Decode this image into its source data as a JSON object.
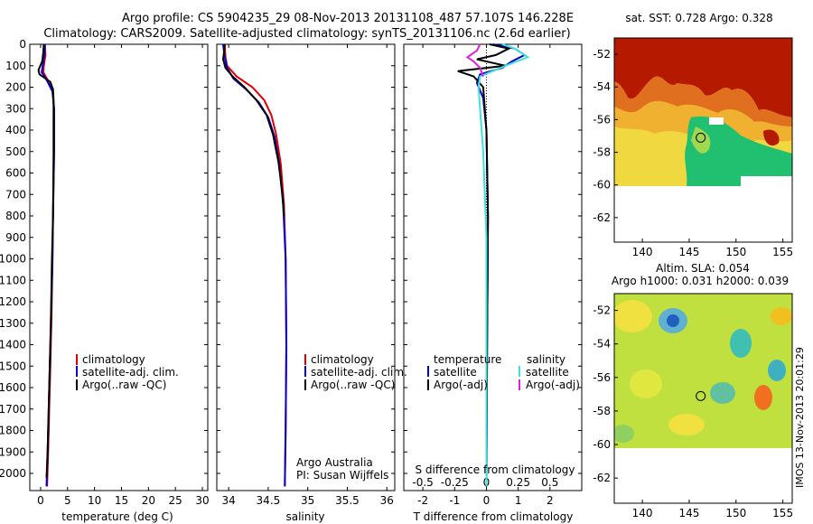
{
  "title": {
    "line1": "Argo profile: CS 5904235_29 08-Nov-2013 20131108_487 57.107S 146.228E",
    "line2": "Climatology: CARS2009. Satellite-adjusted climatology: synTS_20131106.nc (2.6d earlier)"
  },
  "side_stamp": "IMOS 13-Nov-2013 20:01:29",
  "colors": {
    "clim": "#e00000",
    "sat": "#0000d0",
    "argo": "#000000",
    "sat_s": "#40e0e0",
    "argo_s": "#e020e0"
  },
  "chart_data": [
    {
      "type": "line",
      "id": "temperature",
      "xlabel": "temperature (deg C)",
      "xlim": [
        -2,
        31
      ],
      "ylim": [
        2080,
        0
      ],
      "xticks": [
        0,
        5,
        10,
        15,
        20,
        25,
        30
      ],
      "yticks": [
        0,
        100,
        200,
        300,
        400,
        500,
        600,
        700,
        800,
        900,
        1000,
        1100,
        1200,
        1300,
        1400,
        1500,
        1600,
        1700,
        1800,
        1900,
        2000
      ],
      "legend": [
        "climatology",
        "satellite-adj. clim.",
        "Argo(..raw -QC)"
      ],
      "series": [
        {
          "name": "climatology",
          "color": "#e00000",
          "points": [
            [
              0.8,
              0
            ],
            [
              0.9,
              50
            ],
            [
              0.6,
              100
            ],
            [
              0.5,
              130
            ],
            [
              1.4,
              170
            ],
            [
              2.2,
              220
            ],
            [
              2.5,
              300
            ],
            [
              2.5,
              500
            ],
            [
              2.3,
              800
            ],
            [
              2.2,
              1000
            ],
            [
              2.0,
              1300
            ],
            [
              1.7,
              1600
            ],
            [
              1.4,
              1900
            ],
            [
              1.2,
              2060
            ]
          ]
        },
        {
          "name": "satellite-adj. clim.",
          "color": "#0000d0",
          "points": [
            [
              0.8,
              0
            ],
            [
              0.7,
              50
            ],
            [
              0.4,
              100
            ],
            [
              0.2,
              130
            ],
            [
              1.2,
              170
            ],
            [
              2.2,
              220
            ],
            [
              2.5,
              300
            ],
            [
              2.5,
              500
            ],
            [
              2.3,
              800
            ],
            [
              2.2,
              1000
            ],
            [
              1.9,
              1300
            ],
            [
              1.6,
              1600
            ],
            [
              1.3,
              1900
            ],
            [
              1.1,
              2060
            ]
          ]
        },
        {
          "name": "Argo(..raw -QC)",
          "color": "#000000",
          "points": [
            [
              0.6,
              0
            ],
            [
              0.5,
              40
            ],
            [
              0.3,
              80
            ],
            [
              -0.4,
              120
            ],
            [
              -0.2,
              140
            ],
            [
              1.8,
              175
            ],
            [
              2.3,
              210
            ],
            [
              2.4,
              260
            ],
            [
              2.4,
              500
            ],
            [
              2.3,
              800
            ],
            [
              2.1,
              1000
            ],
            [
              1.9,
              1300
            ],
            [
              1.6,
              1600
            ],
            [
              1.3,
              1900
            ],
            [
              1.1,
              2020
            ]
          ]
        }
      ]
    },
    {
      "type": "line",
      "id": "salinity",
      "xlabel": "salinity",
      "xlim": [
        33.85,
        36.1
      ],
      "ylim": [
        2080,
        0
      ],
      "xticks": [
        34,
        34.5,
        35,
        35.5,
        36
      ],
      "xticklabels": [
        "34",
        "34.5",
        "35",
        "35.5",
        "36"
      ],
      "legend": [
        "climatology",
        "satellite-adj. clim.",
        "Argo(..raw -QC)"
      ],
      "annotation": [
        "Argo Australia",
        "PI: Susan Wijffels"
      ],
      "series": [
        {
          "name": "climatology",
          "color": "#e00000",
          "points": [
            [
              33.95,
              0
            ],
            [
              33.96,
              60
            ],
            [
              33.98,
              100
            ],
            [
              34.1,
              150
            ],
            [
              34.3,
              200
            ],
            [
              34.45,
              260
            ],
            [
              34.54,
              330
            ],
            [
              34.6,
              420
            ],
            [
              34.66,
              560
            ],
            [
              34.7,
              750
            ],
            [
              34.72,
              1000
            ],
            [
              34.73,
              1400
            ],
            [
              34.72,
              1800
            ],
            [
              34.71,
              2060
            ]
          ]
        },
        {
          "name": "satellite-adj. clim.",
          "color": "#0000d0",
          "points": [
            [
              33.93,
              0
            ],
            [
              33.95,
              60
            ],
            [
              33.98,
              110
            ],
            [
              34.06,
              160
            ],
            [
              34.22,
              210
            ],
            [
              34.38,
              270
            ],
            [
              34.5,
              340
            ],
            [
              34.58,
              430
            ],
            [
              34.64,
              560
            ],
            [
              34.69,
              750
            ],
            [
              34.72,
              1000
            ],
            [
              34.73,
              1400
            ],
            [
              34.72,
              1800
            ],
            [
              34.71,
              2060
            ]
          ]
        },
        {
          "name": "Argo(..raw -QC)",
          "color": "#000000",
          "points": [
            [
              33.95,
              0
            ],
            [
              33.94,
              40
            ],
            [
              33.93,
              70
            ],
            [
              33.96,
              110
            ],
            [
              34.05,
              150
            ],
            [
              34.2,
              200
            ],
            [
              34.35,
              260
            ],
            [
              34.48,
              330
            ],
            [
              34.56,
              420
            ],
            [
              34.63,
              550
            ],
            [
              34.68,
              700
            ],
            [
              34.7,
              800
            ]
          ]
        }
      ]
    },
    {
      "type": "line",
      "id": "difference",
      "xlabel": "T difference from climatology",
      "xlabel2": "S difference from climatology",
      "xlim": [
        -2.6,
        3.0
      ],
      "ylim": [
        2080,
        0
      ],
      "xticks": [
        -2,
        -1,
        0,
        1,
        2
      ],
      "xticks2": [
        -0.5,
        -0.25,
        0,
        0.25,
        0.5
      ],
      "xticks2_pos": [
        -2,
        -1,
        0,
        1,
        2
      ],
      "legend": {
        "temperature": [
          "satellite",
          "Argo(-adj)"
        ],
        "salinity": [
          "satellite",
          "Argo(-adj)"
        ]
      },
      "series": [
        {
          "name": "temperature satellite",
          "color": "#0000d0",
          "points": [
            [
              0.2,
              0
            ],
            [
              0.9,
              20
            ],
            [
              1.2,
              50
            ],
            [
              0.8,
              80
            ],
            [
              0.5,
              110
            ],
            [
              -0.2,
              140
            ],
            [
              -0.3,
              180
            ],
            [
              -0.1,
              250
            ],
            [
              0.0,
              400
            ],
            [
              0.05,
              800
            ],
            [
              0.02,
              1400
            ],
            [
              0.0,
              2060
            ]
          ]
        },
        {
          "name": "temperature Argo(-adj)",
          "color": "#000000",
          "points": [
            [
              0.1,
              0
            ],
            [
              0.7,
              20
            ],
            [
              0.3,
              50
            ],
            [
              -0.3,
              70
            ],
            [
              0.6,
              100
            ],
            [
              -0.9,
              125
            ],
            [
              -0.4,
              150
            ],
            [
              -0.1,
              200
            ],
            [
              0.0,
              400
            ],
            [
              0.05,
              800
            ],
            [
              0.02,
              1400
            ],
            [
              0.0,
              2060
            ]
          ]
        },
        {
          "name": "salinity satellite",
          "color": "#40e0e0",
          "points": [
            [
              0.5,
              0
            ],
            [
              0.9,
              20
            ],
            [
              1.3,
              60
            ],
            [
              0.6,
              100
            ],
            [
              -0.2,
              150
            ],
            [
              -0.25,
              200
            ],
            [
              -0.2,
              300
            ],
            [
              -0.1,
              500
            ],
            [
              0.0,
              900
            ],
            [
              0.0,
              1400
            ],
            [
              0.0,
              2060
            ]
          ]
        },
        {
          "name": "salinity Argo(-adj)",
          "color": "#e020e0",
          "points": [
            [
              -0.2,
              0
            ],
            [
              -0.3,
              30
            ],
            [
              -0.6,
              60
            ],
            [
              -0.4,
              80
            ],
            [
              -0.2,
              110
            ],
            [
              -0.1,
              150
            ]
          ]
        }
      ]
    },
    {
      "type": "heatmap",
      "id": "sst_map",
      "title": "sat. SST: 0.728 Argo: 0.328",
      "xlim": [
        137,
        156
      ],
      "ylim": [
        -63.5,
        -51
      ],
      "xticks": [
        140,
        145,
        150,
        155
      ],
      "yticks": [
        -52,
        -54,
        -56,
        -58,
        -60,
        -62
      ],
      "marker": [
        146.228,
        -57.107
      ]
    },
    {
      "type": "heatmap",
      "id": "sla_map",
      "title": "Altim. SLA: 0.054",
      "title2": "Argo h1000: 0.031 h2000: 0.039",
      "xlim": [
        137,
        156
      ],
      "ylim": [
        -63.5,
        -51
      ],
      "xticks": [
        140,
        145,
        150,
        155
      ],
      "yticks": [
        -52,
        -54,
        -56,
        -58,
        -60,
        -62
      ],
      "marker": [
        146.228,
        -57.107
      ]
    }
  ]
}
